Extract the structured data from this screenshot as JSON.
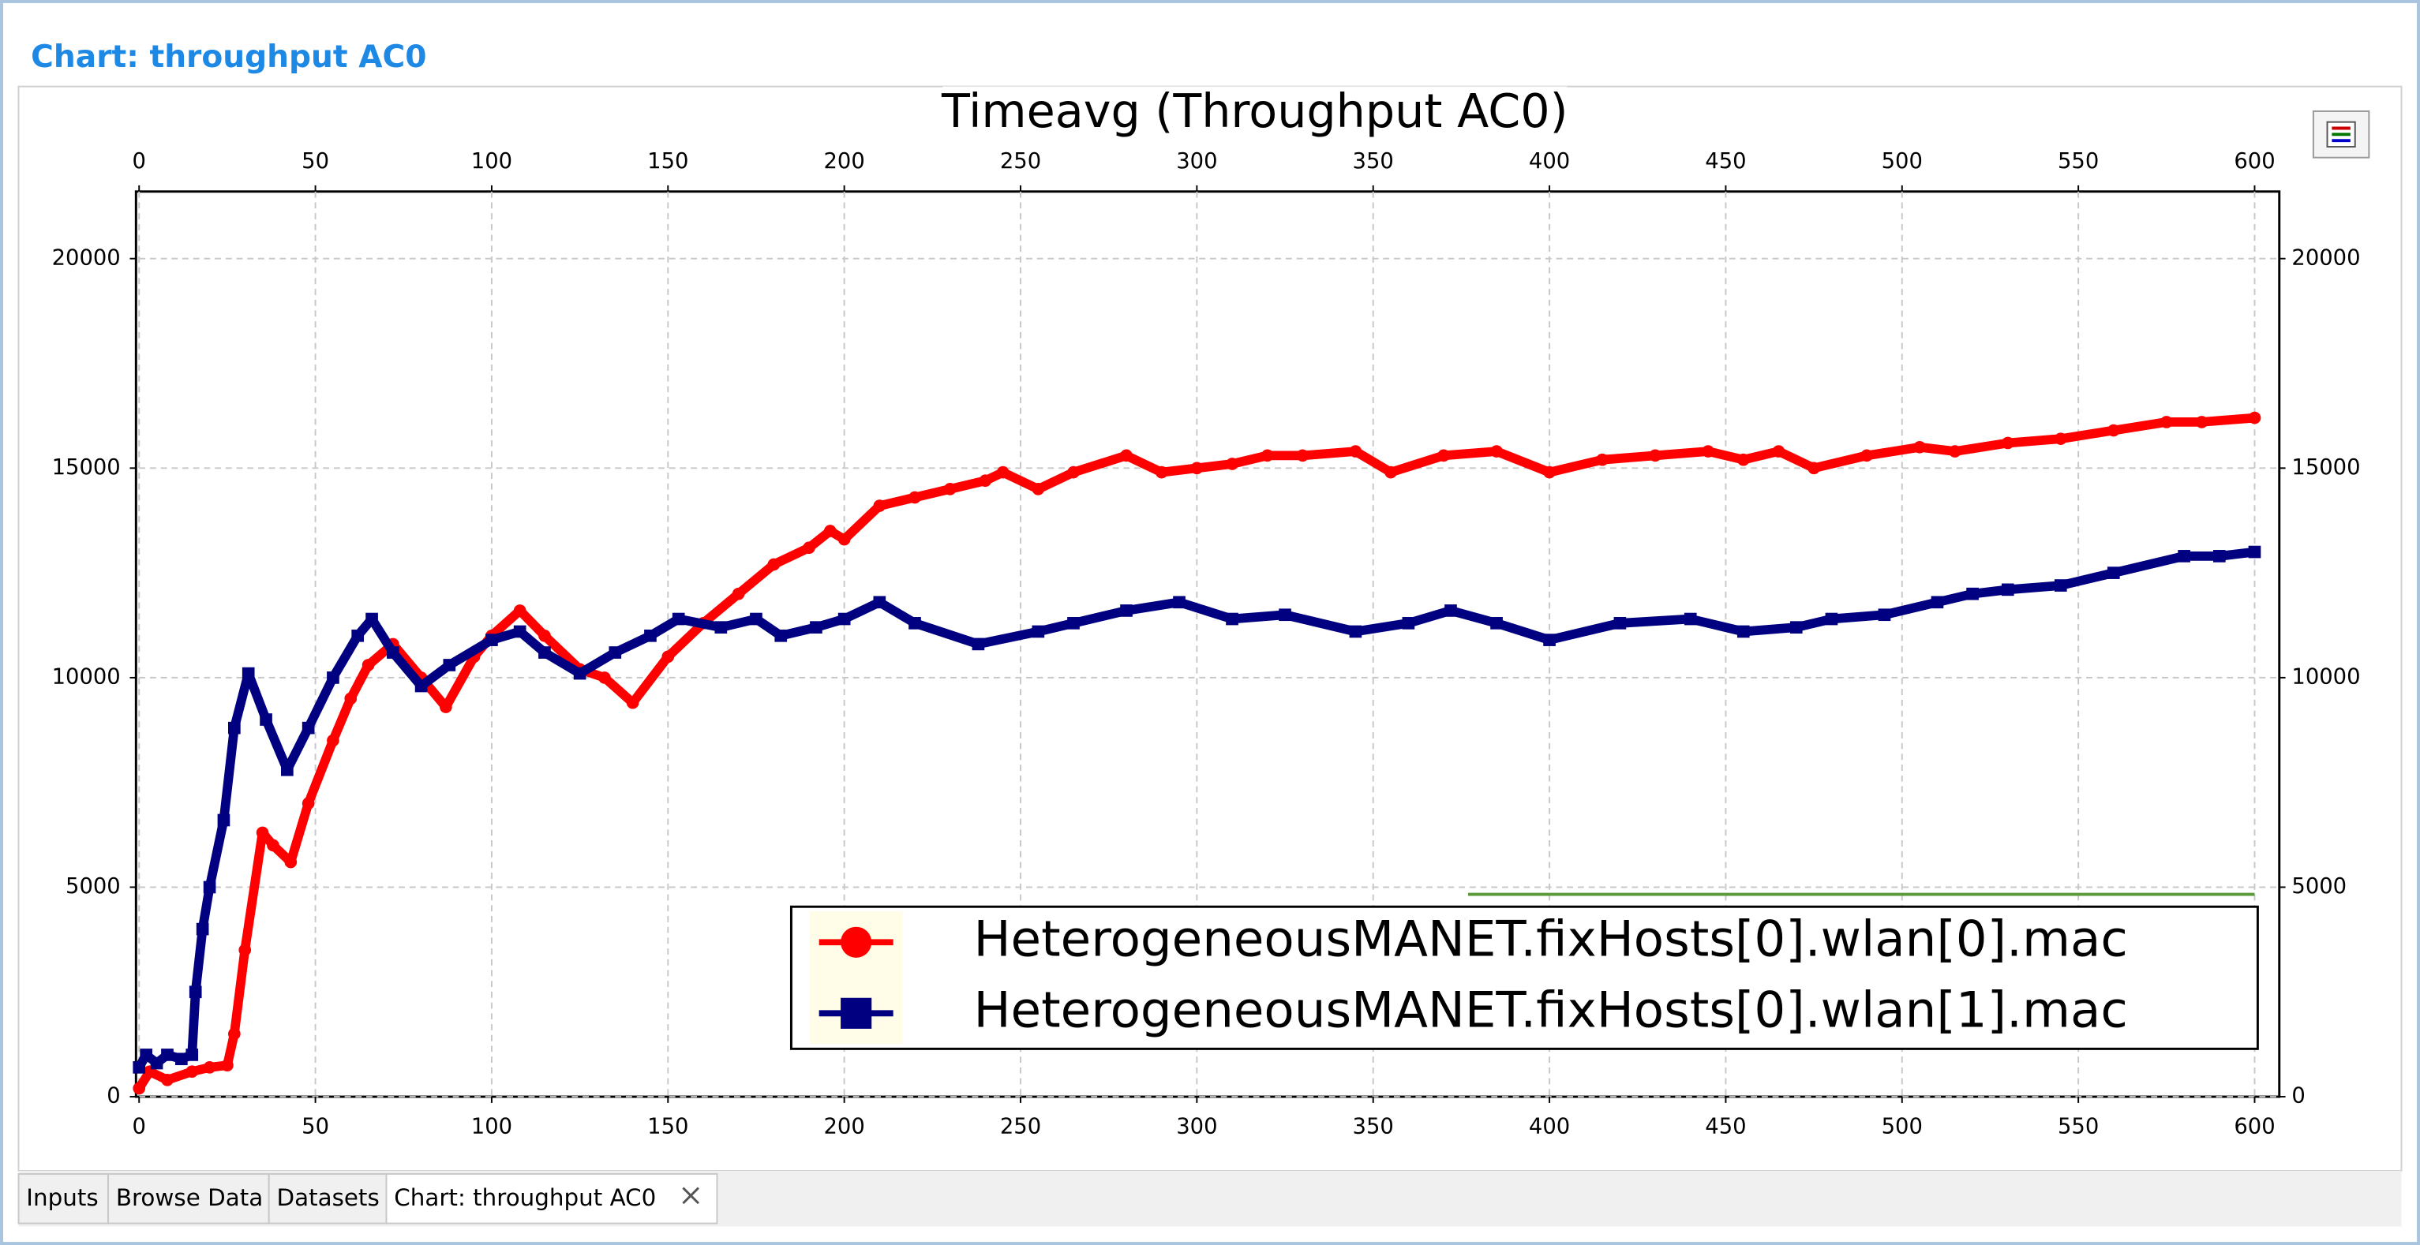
{
  "panel_title": "Chart: throughput AC0",
  "tabs": [
    "Inputs",
    "Browse Data",
    "Datasets",
    "Chart: throughput AC0"
  ],
  "chart_data": {
    "type": "line",
    "title": "Timeavg (Throughput AC0)",
    "xlim": [
      0,
      607
    ],
    "ylim": [
      0,
      21600
    ],
    "xticks": [
      0,
      50,
      100,
      150,
      200,
      250,
      300,
      350,
      400,
      450,
      500,
      550,
      600
    ],
    "yticks": [
      0,
      5000,
      10000,
      15000,
      20000
    ],
    "grid": true,
    "series": [
      {
        "name": "HeterogeneousMANET.fixHosts[0].wlan[0].mac",
        "color": "#ff0000",
        "marker": "circle",
        "x": [
          0,
          3,
          8,
          15,
          20,
          25,
          27,
          30,
          35,
          38,
          43,
          48,
          55,
          60,
          65,
          72,
          80,
          87,
          95,
          100,
          108,
          115,
          125,
          132,
          140,
          150,
          160,
          170,
          180,
          190,
          196,
          200,
          210,
          220,
          230,
          240,
          245,
          255,
          265,
          280,
          290,
          300,
          310,
          320,
          330,
          345,
          355,
          370,
          385,
          400,
          415,
          430,
          445,
          455,
          465,
          475,
          490,
          505,
          515,
          530,
          545,
          560,
          575,
          585,
          600
        ],
        "values": [
          200,
          600,
          400,
          600,
          700,
          750,
          1500,
          3500,
          6300,
          6000,
          5600,
          7000,
          8500,
          9500,
          10300,
          10800,
          10000,
          9300,
          10500,
          11000,
          11600,
          11000,
          10200,
          10000,
          9400,
          10500,
          11300,
          12000,
          12700,
          13100,
          13500,
          13300,
          14100,
          14300,
          14500,
          14700,
          14900,
          14500,
          14900,
          15300,
          14900,
          15000,
          15100,
          15300,
          15300,
          15400,
          14900,
          15300,
          15400,
          14900,
          15200,
          15300,
          15400,
          15200,
          15400,
          15000,
          15300,
          15500,
          15400,
          15600,
          15700,
          15900,
          16100,
          16100,
          16200
        ]
      },
      {
        "name": "HeterogeneousMANET.fixHosts[0].wlan[1].mac",
        "color": "#000080",
        "marker": "square",
        "x": [
          0,
          2,
          5,
          8,
          12,
          15,
          16,
          18,
          20,
          24,
          27,
          31,
          36,
          42,
          48,
          55,
          62,
          66,
          72,
          80,
          88,
          100,
          108,
          115,
          125,
          135,
          145,
          153,
          165,
          175,
          182,
          192,
          200,
          210,
          220,
          238,
          255,
          265,
          280,
          295,
          310,
          325,
          345,
          360,
          372,
          385,
          400,
          420,
          440,
          455,
          470,
          480,
          495,
          510,
          520,
          530,
          545,
          560,
          580,
          590,
          600
        ],
        "values": [
          700,
          1000,
          800,
          1000,
          900,
          1000,
          2500,
          4000,
          5000,
          6600,
          8800,
          10100,
          9000,
          7800,
          8800,
          10000,
          11000,
          11400,
          10600,
          9800,
          10300,
          10900,
          11100,
          10600,
          10100,
          10600,
          11000,
          11400,
          11200,
          11400,
          11000,
          11200,
          11400,
          11800,
          11300,
          10800,
          11100,
          11300,
          11600,
          11800,
          11400,
          11500,
          11100,
          11300,
          11600,
          11300,
          10900,
          11300,
          11400,
          11100,
          11200,
          11400,
          11500,
          11800,
          12000,
          12100,
          12200,
          12500,
          12900,
          12900,
          13000
        ]
      }
    ]
  }
}
